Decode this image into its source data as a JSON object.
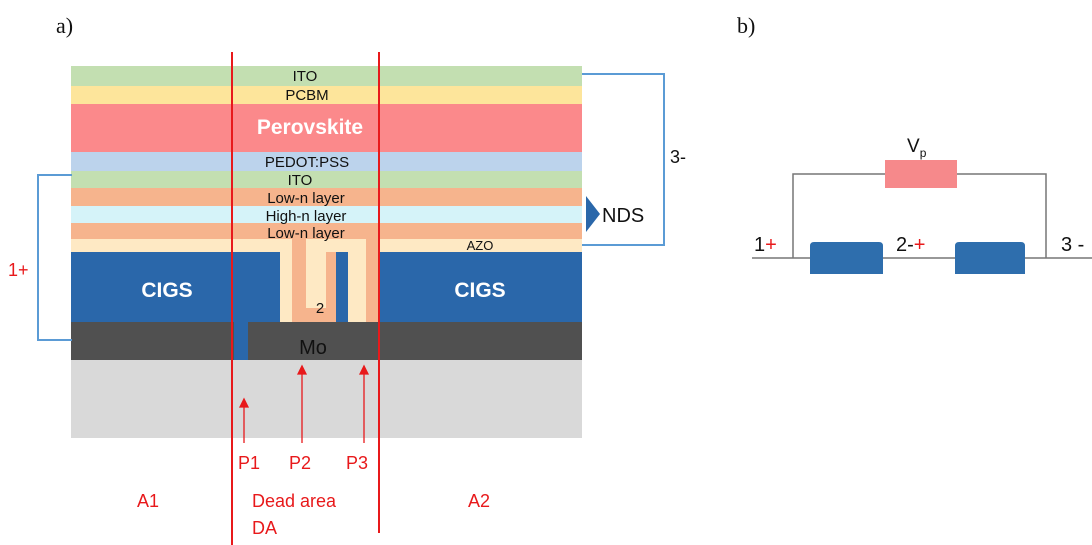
{
  "panels": {
    "a": "a)",
    "b": "b)"
  },
  "layers": {
    "ito_top": "ITO",
    "pcbm": "PCBM",
    "perovskite": "Perovskite",
    "pedot": "PEDOT:PSS",
    "ito_mid": "ITO",
    "low_n_1": "Low-n layer",
    "high_n": "High-n layer",
    "low_n_2": "Low-n layer",
    "azo": "AZO",
    "cigs_left": "CIGS",
    "cigs_right": "CIGS",
    "mo": "Mo",
    "node_2": "2"
  },
  "contacts": {
    "c1": "1+",
    "c3": "3-",
    "nds": "NDS"
  },
  "scribes": {
    "p1": "P1",
    "p2": "P2",
    "p3": "P3"
  },
  "areas": {
    "a1": "A1",
    "dead1": "Dead area",
    "dead2": "DA",
    "a2": "A2"
  },
  "circuit": {
    "vp": "V",
    "vp_sub": "p",
    "n1": "1",
    "n1_sign": "+",
    "n2": "2-",
    "n2_sign": "+",
    "n3": "3 -"
  },
  "colors": {
    "ito": "#c3dfb1",
    "pcbm": "#fde59b",
    "perovskite": "#fb898b",
    "pedot": "#bcd3ec",
    "low_n": "#f6b48d",
    "high_n": "#d5f3f9",
    "azo": "#fee9c4",
    "cigs": "#2a67aa",
    "mo": "#505050",
    "substrate": "#d9d9d9",
    "scribe_red": "#e8191b",
    "wire": "#5b9bd5",
    "vp_box": "#f6898b",
    "cell_box": "#2e6ead"
  }
}
